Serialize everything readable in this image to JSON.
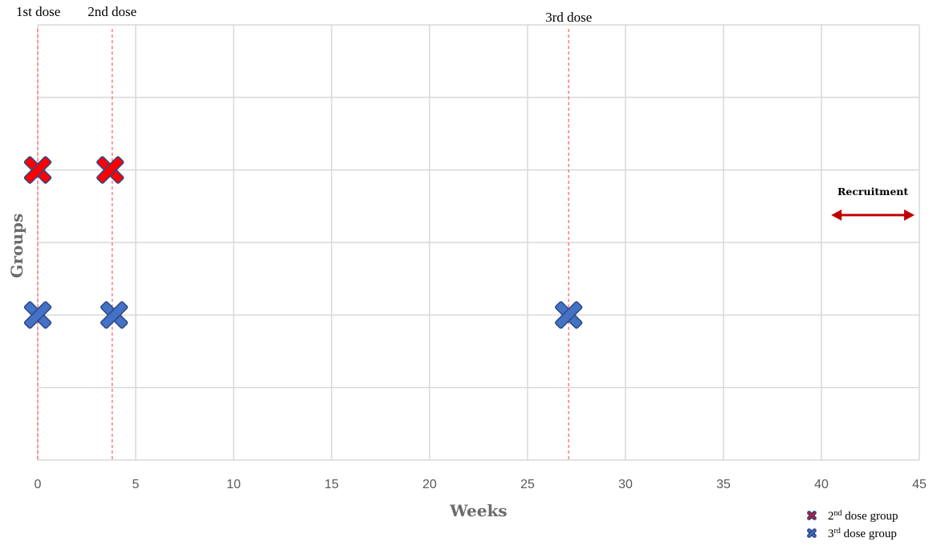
{
  "chart_data": {
    "type": "scatter",
    "xlabel": "Weeks",
    "ylabel": "Groups",
    "xlim": [
      0,
      45
    ],
    "xticks": [
      "0",
      "5",
      "10",
      "15",
      "20",
      "25",
      "30",
      "35",
      "40",
      "45"
    ],
    "ylim": [
      0,
      6
    ],
    "grid": true,
    "series": [
      {
        "name": "2nd dose group",
        "color": "#ff0000",
        "marker": "x",
        "x": [
          0,
          3.7
        ],
        "y": [
          4,
          4
        ]
      },
      {
        "name": "3rd dose group",
        "color": "#4472c4",
        "marker": "x",
        "x": [
          0,
          3.9,
          27.1
        ],
        "y": [
          2,
          2,
          2
        ]
      }
    ],
    "dose_lines": [
      {
        "label": "1st dose",
        "x": 0
      },
      {
        "label": "2nd dose",
        "x": 3.8
      },
      {
        "label": "3rd dose",
        "x": 27.1
      }
    ],
    "annotation": {
      "label": "Recruitment",
      "x_start": 40.5,
      "x_end": 45,
      "y": 3.4,
      "color": "#c00000"
    },
    "legend": {
      "placement": "bottom-right",
      "entries": [
        {
          "base": "2",
          "sup": "nd",
          "rest": " dose group"
        },
        {
          "base": "3",
          "sup": "rd",
          "rest": " dose group"
        }
      ]
    }
  }
}
